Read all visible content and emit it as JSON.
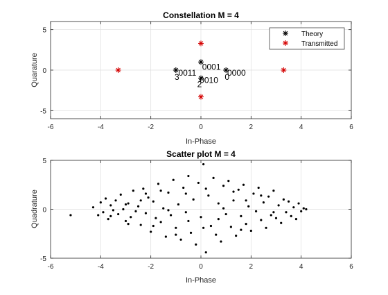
{
  "chart_data": [
    {
      "type": "scatter",
      "title": "Constellation M = 4",
      "xlabel": "In-Phase",
      "ylabel": "Quarature",
      "xlim": [
        -6,
        6
      ],
      "ylim": [
        -6,
        6
      ],
      "xticks": [
        -6,
        -4,
        -2,
        0,
        2,
        4,
        6
      ],
      "yticks": [
        -5,
        0,
        5
      ],
      "grid": true,
      "legend_position": "top-right",
      "series": [
        {
          "name": "Theory",
          "color": "#000000",
          "marker": "asterisk",
          "points": [
            [
              1,
              0
            ],
            [
              0,
              1
            ],
            [
              -1,
              0
            ],
            [
              0,
              -1
            ]
          ]
        },
        {
          "name": "Transmitted",
          "color": "#d40000",
          "marker": "asterisk",
          "points": [
            [
              3.3,
              0
            ],
            [
              0,
              3.3
            ],
            [
              -3.3,
              0
            ],
            [
              0,
              -3.3
            ]
          ]
        }
      ],
      "annotations": [
        {
          "text": "0001",
          "x": 0.05,
          "y": 0.05
        },
        {
          "text": "0011",
          "x": -0.9,
          "y": -0.7
        },
        {
          "text": "3",
          "x": -1.05,
          "y": -1.2
        },
        {
          "text": "0000",
          "x": 1.05,
          "y": -0.7
        },
        {
          "text": "0",
          "x": 0.95,
          "y": -1.2
        },
        {
          "text": "0010",
          "x": -0.05,
          "y": -1.6
        },
        {
          "text": "2",
          "x": -0.15,
          "y": -2.1
        }
      ]
    },
    {
      "type": "scatter",
      "title": "Scatter plot M = 4",
      "xlabel": "In-Phase",
      "ylabel": "Quadrature",
      "xlim": [
        -6,
        6
      ],
      "ylim": [
        -5,
        5
      ],
      "xticks": [
        -6,
        -4,
        -2,
        0,
        2,
        4,
        6
      ],
      "yticks": [
        -5,
        0,
        5
      ],
      "grid": true,
      "series": [
        {
          "color": "#000000",
          "marker": "dot",
          "points": [
            [
              -5.2,
              -0.6
            ],
            [
              -4.3,
              0.2
            ],
            [
              -4.1,
              -0.6
            ],
            [
              -4.0,
              0.7
            ],
            [
              -3.9,
              -0.3
            ],
            [
              -3.8,
              1.1
            ],
            [
              -3.7,
              -1.0
            ],
            [
              -3.6,
              0.4
            ],
            [
              -3.5,
              -0.1
            ],
            [
              -3.4,
              0.9
            ],
            [
              -3.3,
              -0.5
            ],
            [
              -3.2,
              1.5
            ],
            [
              -3.1,
              0.0
            ],
            [
              -3.0,
              -1.2
            ],
            [
              -2.9,
              0.6
            ],
            [
              -2.8,
              -0.8
            ],
            [
              -2.7,
              1.9
            ],
            [
              -2.6,
              -0.2
            ],
            [
              -2.5,
              0.3
            ],
            [
              -2.4,
              -1.6
            ],
            [
              -2.3,
              2.1
            ],
            [
              -2.2,
              -0.4
            ],
            [
              -2.1,
              1.2
            ],
            [
              -2.0,
              -2.3
            ],
            [
              -1.9,
              0.8
            ],
            [
              -1.8,
              -0.9
            ],
            [
              -1.7,
              2.6
            ],
            [
              -1.6,
              -1.3
            ],
            [
              -1.5,
              0.1
            ],
            [
              -1.4,
              -2.8
            ],
            [
              -1.3,
              1.7
            ],
            [
              -1.2,
              -0.6
            ],
            [
              -1.1,
              3.0
            ],
            [
              -1.0,
              -1.9
            ],
            [
              -0.9,
              0.5
            ],
            [
              -0.8,
              -3.1
            ],
            [
              -0.7,
              2.2
            ],
            [
              -0.6,
              -0.3
            ],
            [
              -0.5,
              3.4
            ],
            [
              -0.4,
              -2.4
            ],
            [
              -0.3,
              1.0
            ],
            [
              -0.2,
              -3.6
            ],
            [
              -0.1,
              2.7
            ],
            [
              0.0,
              -0.8
            ],
            [
              0.1,
              4.6
            ],
            [
              0.2,
              -4.4
            ],
            [
              0.3,
              1.4
            ],
            [
              0.4,
              -1.7
            ],
            [
              0.5,
              3.2
            ],
            [
              0.6,
              -2.6
            ],
            [
              0.7,
              0.6
            ],
            [
              0.8,
              -3.3
            ],
            [
              0.9,
              2.4
            ],
            [
              1.0,
              -0.5
            ],
            [
              1.1,
              2.9
            ],
            [
              1.2,
              -1.8
            ],
            [
              1.3,
              0.9
            ],
            [
              1.4,
              -2.7
            ],
            [
              1.5,
              2.0
            ],
            [
              1.6,
              -0.7
            ],
            [
              1.7,
              2.5
            ],
            [
              1.8,
              -1.5
            ],
            [
              1.9,
              0.3
            ],
            [
              2.0,
              -2.2
            ],
            [
              2.1,
              1.6
            ],
            [
              2.2,
              -0.2
            ],
            [
              2.3,
              2.2
            ],
            [
              2.4,
              -1.1
            ],
            [
              2.5,
              0.7
            ],
            [
              2.6,
              -1.9
            ],
            [
              2.7,
              1.3
            ],
            [
              2.8,
              -0.6
            ],
            [
              2.9,
              1.9
            ],
            [
              3.0,
              -0.9
            ],
            [
              3.1,
              0.4
            ],
            [
              3.2,
              -1.4
            ],
            [
              3.3,
              1.0
            ],
            [
              3.4,
              -0.3
            ],
            [
              3.5,
              0.8
            ],
            [
              3.6,
              -0.7
            ],
            [
              3.7,
              0.2
            ],
            [
              3.8,
              -1.0
            ],
            [
              3.9,
              0.6
            ],
            [
              4.0,
              -0.2
            ],
            [
              4.1,
              0.1
            ],
            [
              4.2,
              0.0
            ],
            [
              -3.6,
              -0.7
            ],
            [
              -2.9,
              -1.5
            ],
            [
              -2.2,
              1.6
            ],
            [
              -1.6,
              1.9
            ],
            [
              -1.0,
              -2.6
            ],
            [
              -0.5,
              -1.2
            ],
            [
              0.2,
              2.1
            ],
            [
              0.7,
              -1.0
            ],
            [
              1.3,
              1.8
            ],
            [
              1.8,
              0.9
            ],
            [
              2.4,
              1.4
            ],
            [
              2.9,
              -0.3
            ],
            [
              -1.9,
              -1.7
            ],
            [
              -1.3,
              -0.1
            ],
            [
              -0.6,
              1.6
            ],
            [
              0.1,
              -1.9
            ],
            [
              0.9,
              0.1
            ],
            [
              1.6,
              -2.1
            ],
            [
              -2.4,
              0.9
            ],
            [
              -3.0,
              0.5
            ]
          ]
        }
      ]
    }
  ]
}
